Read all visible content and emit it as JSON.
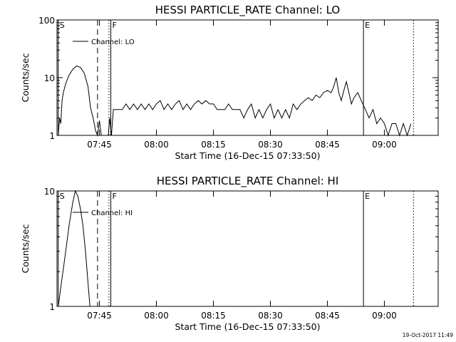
{
  "footer_timestamp": "19-Oct-2017 11:49",
  "chart_data": [
    {
      "type": "line",
      "title": "HESSI PARTICLE_RATE Channel: LO",
      "xlabel": "Start Time (16-Dec-15 07:33:50)",
      "ylabel": "Counts/sec",
      "x_ticks": [
        "07:45",
        "08:00",
        "08:15",
        "08:30",
        "08:45",
        "09:00"
      ],
      "y_ticks": [
        "1",
        "10",
        "100"
      ],
      "y_scale": "log",
      "ylim": [
        1,
        100
      ],
      "xlim": [
        "07:33:50",
        "09:14:10"
      ],
      "legend": "Channel: LO",
      "legend_position": "top-left",
      "markers": [
        {
          "label": "S",
          "time": "07:34:10",
          "style": "solid"
        },
        {
          "label": "",
          "time": "07:44:30",
          "style": "dashed"
        },
        {
          "label": "",
          "time": "07:47:30",
          "style": "dotted"
        },
        {
          "label": "F",
          "time": "07:48:00",
          "style": "solid"
        },
        {
          "label": "E",
          "time": "08:54:30",
          "style": "solid"
        },
        {
          "label": "",
          "time": "09:07:40",
          "style": "dotted"
        }
      ],
      "series": [
        {
          "color": "#000000",
          "points": [
            [
              "07:34:10",
              1.0
            ],
            [
              "07:34:30",
              2.0
            ],
            [
              "07:34:50",
              1.6
            ],
            [
              "07:35:10",
              4.0
            ],
            [
              "07:35:30",
              5.5
            ],
            [
              "07:36:10",
              8.0
            ],
            [
              "07:37:00",
              11.0
            ],
            [
              "07:38:00",
              14.0
            ],
            [
              "07:39:00",
              16.0
            ],
            [
              "07:40:00",
              15.0
            ],
            [
              "07:41:00",
              12.0
            ],
            [
              "07:42:00",
              7.0
            ],
            [
              "07:42:40",
              3.0
            ],
            [
              "07:43:20",
              2.0
            ],
            [
              "07:44:00",
              1.2
            ],
            [
              "07:44:30",
              1.0
            ],
            [
              "07:45:00",
              1.8
            ],
            [
              "07:45:30",
              1.0
            ],
            [
              "07:47:20",
              1.0
            ],
            [
              "07:47:40",
              2.0
            ],
            [
              "07:48:10",
              1.0
            ],
            [
              "07:48:40",
              2.8
            ],
            [
              "07:51:00",
              2.8
            ],
            [
              "07:52:00",
              3.5
            ],
            [
              "07:53:00",
              2.8
            ],
            [
              "07:54:00",
              3.5
            ],
            [
              "07:55:00",
              2.8
            ],
            [
              "07:56:00",
              3.5
            ],
            [
              "07:57:00",
              2.8
            ],
            [
              "07:58:00",
              3.5
            ],
            [
              "07:59:00",
              2.8
            ],
            [
              "08:00:00",
              3.5
            ],
            [
              "08:01:00",
              4.0
            ],
            [
              "08:02:00",
              2.8
            ],
            [
              "08:03:00",
              3.5
            ],
            [
              "08:04:00",
              2.8
            ],
            [
              "08:05:00",
              3.5
            ],
            [
              "08:06:00",
              4.0
            ],
            [
              "08:07:00",
              2.8
            ],
            [
              "08:08:00",
              3.5
            ],
            [
              "08:09:00",
              2.8
            ],
            [
              "08:10:00",
              3.5
            ],
            [
              "08:11:00",
              4.0
            ],
            [
              "08:12:00",
              3.5
            ],
            [
              "08:13:00",
              4.0
            ],
            [
              "08:14:00",
              3.5
            ],
            [
              "08:15:00",
              3.5
            ],
            [
              "08:16:00",
              2.8
            ],
            [
              "08:18:00",
              2.8
            ],
            [
              "08:19:00",
              3.5
            ],
            [
              "08:20:00",
              2.8
            ],
            [
              "08:22:00",
              2.8
            ],
            [
              "08:23:00",
              2.0
            ],
            [
              "08:24:00",
              2.8
            ],
            [
              "08:25:00",
              3.5
            ],
            [
              "08:26:00",
              2.0
            ],
            [
              "08:27:00",
              2.8
            ],
            [
              "08:28:00",
              2.0
            ],
            [
              "08:29:00",
              2.8
            ],
            [
              "08:30:00",
              3.5
            ],
            [
              "08:31:00",
              2.0
            ],
            [
              "08:32:00",
              2.8
            ],
            [
              "08:33:00",
              2.0
            ],
            [
              "08:34:00",
              2.8
            ],
            [
              "08:35:00",
              2.0
            ],
            [
              "08:36:00",
              3.5
            ],
            [
              "08:37:00",
              2.8
            ],
            [
              "08:38:00",
              3.5
            ],
            [
              "08:39:00",
              4.0
            ],
            [
              "08:40:00",
              4.5
            ],
            [
              "08:41:00",
              4.0
            ],
            [
              "08:42:00",
              5.0
            ],
            [
              "08:43:00",
              4.5
            ],
            [
              "08:44:00",
              5.5
            ],
            [
              "08:45:00",
              6.0
            ],
            [
              "08:46:00",
              5.5
            ],
            [
              "08:46:40",
              7.0
            ],
            [
              "08:47:20",
              10.0
            ],
            [
              "08:48:00",
              5.5
            ],
            [
              "08:48:40",
              4.0
            ],
            [
              "08:49:20",
              6.0
            ],
            [
              "08:50:00",
              8.5
            ],
            [
              "08:50:40",
              5.5
            ],
            [
              "08:51:20",
              3.5
            ],
            [
              "08:52:00",
              4.5
            ],
            [
              "08:53:00",
              5.5
            ],
            [
              "08:54:20",
              3.5
            ],
            [
              "08:55:00",
              2.8
            ],
            [
              "08:56:00",
              2.0
            ],
            [
              "08:57:00",
              2.8
            ],
            [
              "08:58:00",
              1.6
            ],
            [
              "08:59:00",
              2.0
            ],
            [
              "09:00:00",
              1.6
            ],
            [
              "09:01:00",
              1.0
            ],
            [
              "09:02:00",
              1.6
            ],
            [
              "09:03:00",
              1.6
            ],
            [
              "09:04:00",
              1.0
            ],
            [
              "09:05:00",
              1.6
            ],
            [
              "09:06:00",
              1.0
            ],
            [
              "09:07:00",
              1.6
            ]
          ]
        }
      ]
    },
    {
      "type": "line",
      "title": "HESSI PARTICLE_RATE Channel: HI",
      "xlabel": "Start Time (16-Dec-15 07:33:50)",
      "ylabel": "Counts/sec",
      "x_ticks": [
        "07:45",
        "08:00",
        "08:15",
        "08:30",
        "08:45",
        "09:00"
      ],
      "y_ticks": [
        "1",
        "10"
      ],
      "y_scale": "log",
      "ylim": [
        1,
        10
      ],
      "xlim": [
        "07:33:50",
        "09:14:10"
      ],
      "legend": "Channel: HI",
      "legend_position": "top-left",
      "markers": [
        {
          "label": "S",
          "time": "07:34:10",
          "style": "solid"
        },
        {
          "label": "",
          "time": "07:44:30",
          "style": "dashed"
        },
        {
          "label": "",
          "time": "07:47:30",
          "style": "dotted"
        },
        {
          "label": "F",
          "time": "07:48:00",
          "style": "solid"
        },
        {
          "label": "E",
          "time": "08:54:30",
          "style": "solid"
        },
        {
          "label": "",
          "time": "09:07:40",
          "style": "dotted"
        }
      ],
      "series": [
        {
          "color": "#000000",
          "points": [
            [
              "07:34:10",
              1.0
            ],
            [
              "07:35:00",
              1.6
            ],
            [
              "07:36:00",
              2.8
            ],
            [
              "07:37:00",
              5.0
            ],
            [
              "07:38:00",
              8.0
            ],
            [
              "07:38:40",
              10.0
            ],
            [
              "07:39:20",
              9.0
            ],
            [
              "07:40:00",
              7.0
            ],
            [
              "07:40:40",
              5.0
            ],
            [
              "07:41:20",
              3.0
            ],
            [
              "07:42:00",
              1.6
            ],
            [
              "07:42:30",
              1.0
            ]
          ]
        }
      ]
    }
  ]
}
